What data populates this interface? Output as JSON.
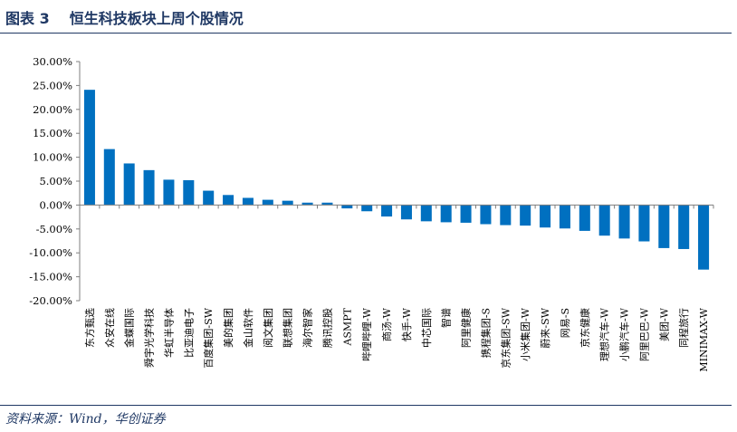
{
  "header": {
    "figure_label": "图表 3",
    "title": "恒生科技板块上周个股情况"
  },
  "footer": {
    "source": "资料来源：Wind，华创证券"
  },
  "colors": {
    "bar": "#0070c0",
    "rule": "#1f3864",
    "axis": "#7f7f7f",
    "text": "#000000"
  },
  "chart_data": {
    "type": "bar",
    "title": "",
    "xlabel": "",
    "ylabel": "",
    "ylim": [
      -20,
      30
    ],
    "yticks": [
      "30.00%",
      "25.00%",
      "20.00%",
      "15.00%",
      "10.00%",
      "5.00%",
      "0.00%",
      "-5.00%",
      "-10.00%",
      "-15.00%",
      "-20.00%"
    ],
    "ytick_values": [
      30,
      25,
      20,
      15,
      10,
      5,
      0,
      -5,
      -10,
      -15,
      -20
    ],
    "grid": false,
    "categories": [
      "东方甄选",
      "众安在线",
      "金蝶国际",
      "舜宇光学科技",
      "华虹半导体",
      "比亚迪电子",
      "百度集团-SW",
      "美的集团",
      "金山软件",
      "阅文集团",
      "联想集团",
      "海尔智家",
      "腾讯控股",
      "ASMPT",
      "哔哩哔哩-W",
      "商汤-W",
      "快手-W",
      "中芯国际",
      "智谱",
      "阿里健康",
      "携程集团-S",
      "京东集团-SW",
      "小米集团-W",
      "蔚来-SW",
      "网易-S",
      "京东健康",
      "理想汽车-W",
      "小鹏汽车-W",
      "阿里巴巴-W",
      "美团-W",
      "同程旅行",
      "MINIMAX-W"
    ],
    "values": [
      24.1,
      11.7,
      8.7,
      7.3,
      5.3,
      5.2,
      3.0,
      2.1,
      1.5,
      1.1,
      0.9,
      0.5,
      0.5,
      -0.7,
      -1.3,
      -2.4,
      -3.0,
      -3.4,
      -3.6,
      -3.7,
      -4.0,
      -4.2,
      -4.3,
      -4.7,
      -4.9,
      -5.4,
      -6.4,
      -7.0,
      -7.6,
      -9.0,
      -9.2,
      -13.5
    ]
  }
}
